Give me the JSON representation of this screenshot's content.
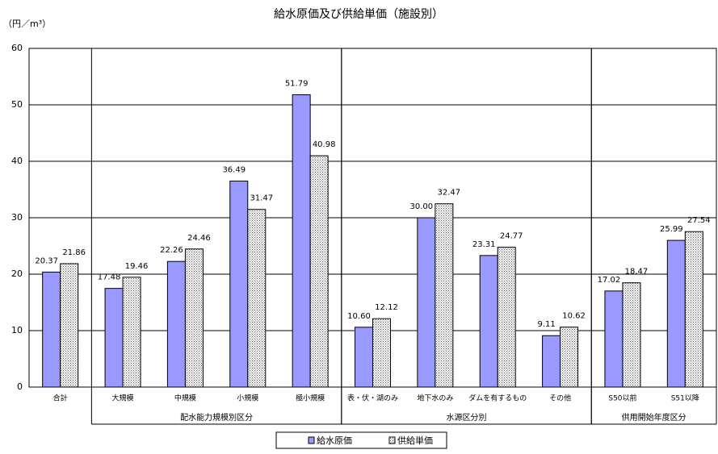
{
  "chart_data": {
    "type": "bar",
    "title": "給水原価及び供給単価（施設別）",
    "y_label": "（円／m³）",
    "categories": [
      "合計",
      "大規模",
      "中規模",
      "小規模",
      "極小規模",
      "表・伏・湖のみ",
      "地下水のみ",
      "ダムを有するもの",
      "その他",
      "S50以前",
      "S51以降"
    ],
    "groups": [
      {
        "label": "配水能力規模別区分",
        "categories": [
          "大規模",
          "中規模",
          "小規模",
          "極小規模"
        ]
      },
      {
        "label": "水源区分別",
        "categories": [
          "表・伏・湖のみ",
          "地下水のみ",
          "ダムを有するもの",
          "その他"
        ]
      },
      {
        "label": "供用開始年度区分",
        "categories": [
          "S50以前",
          "S51以降"
        ]
      }
    ],
    "series": [
      {
        "name": "給水原価",
        "color": "#9999ff",
        "pattern": "solid",
        "values": [
          20.37,
          17.48,
          22.26,
          36.49,
          51.79,
          10.6,
          30.0,
          23.31,
          9.11,
          17.02,
          25.99
        ],
        "value_labels": [
          "20.37",
          "17.48",
          "22.26",
          "36.49",
          "51.79",
          "10.60",
          "30.00",
          "23.31",
          "9.11",
          "17.02",
          "25.99"
        ]
      },
      {
        "name": "供給単価",
        "color": "#000000",
        "pattern": "dots",
        "values": [
          21.86,
          19.46,
          24.46,
          31.47,
          40.98,
          12.12,
          32.47,
          24.77,
          10.62,
          18.47,
          27.54
        ],
        "value_labels": [
          "21.86",
          "19.46",
          "24.46",
          "31.47",
          "40.98",
          "12.12",
          "32.47",
          "24.77",
          "10.62",
          "18.47",
          "27.54"
        ]
      }
    ],
    "ylim": [
      0,
      60
    ],
    "yticks": [
      0,
      10,
      20,
      30,
      40,
      50,
      60
    ],
    "grid": true,
    "legend": "bottom"
  }
}
